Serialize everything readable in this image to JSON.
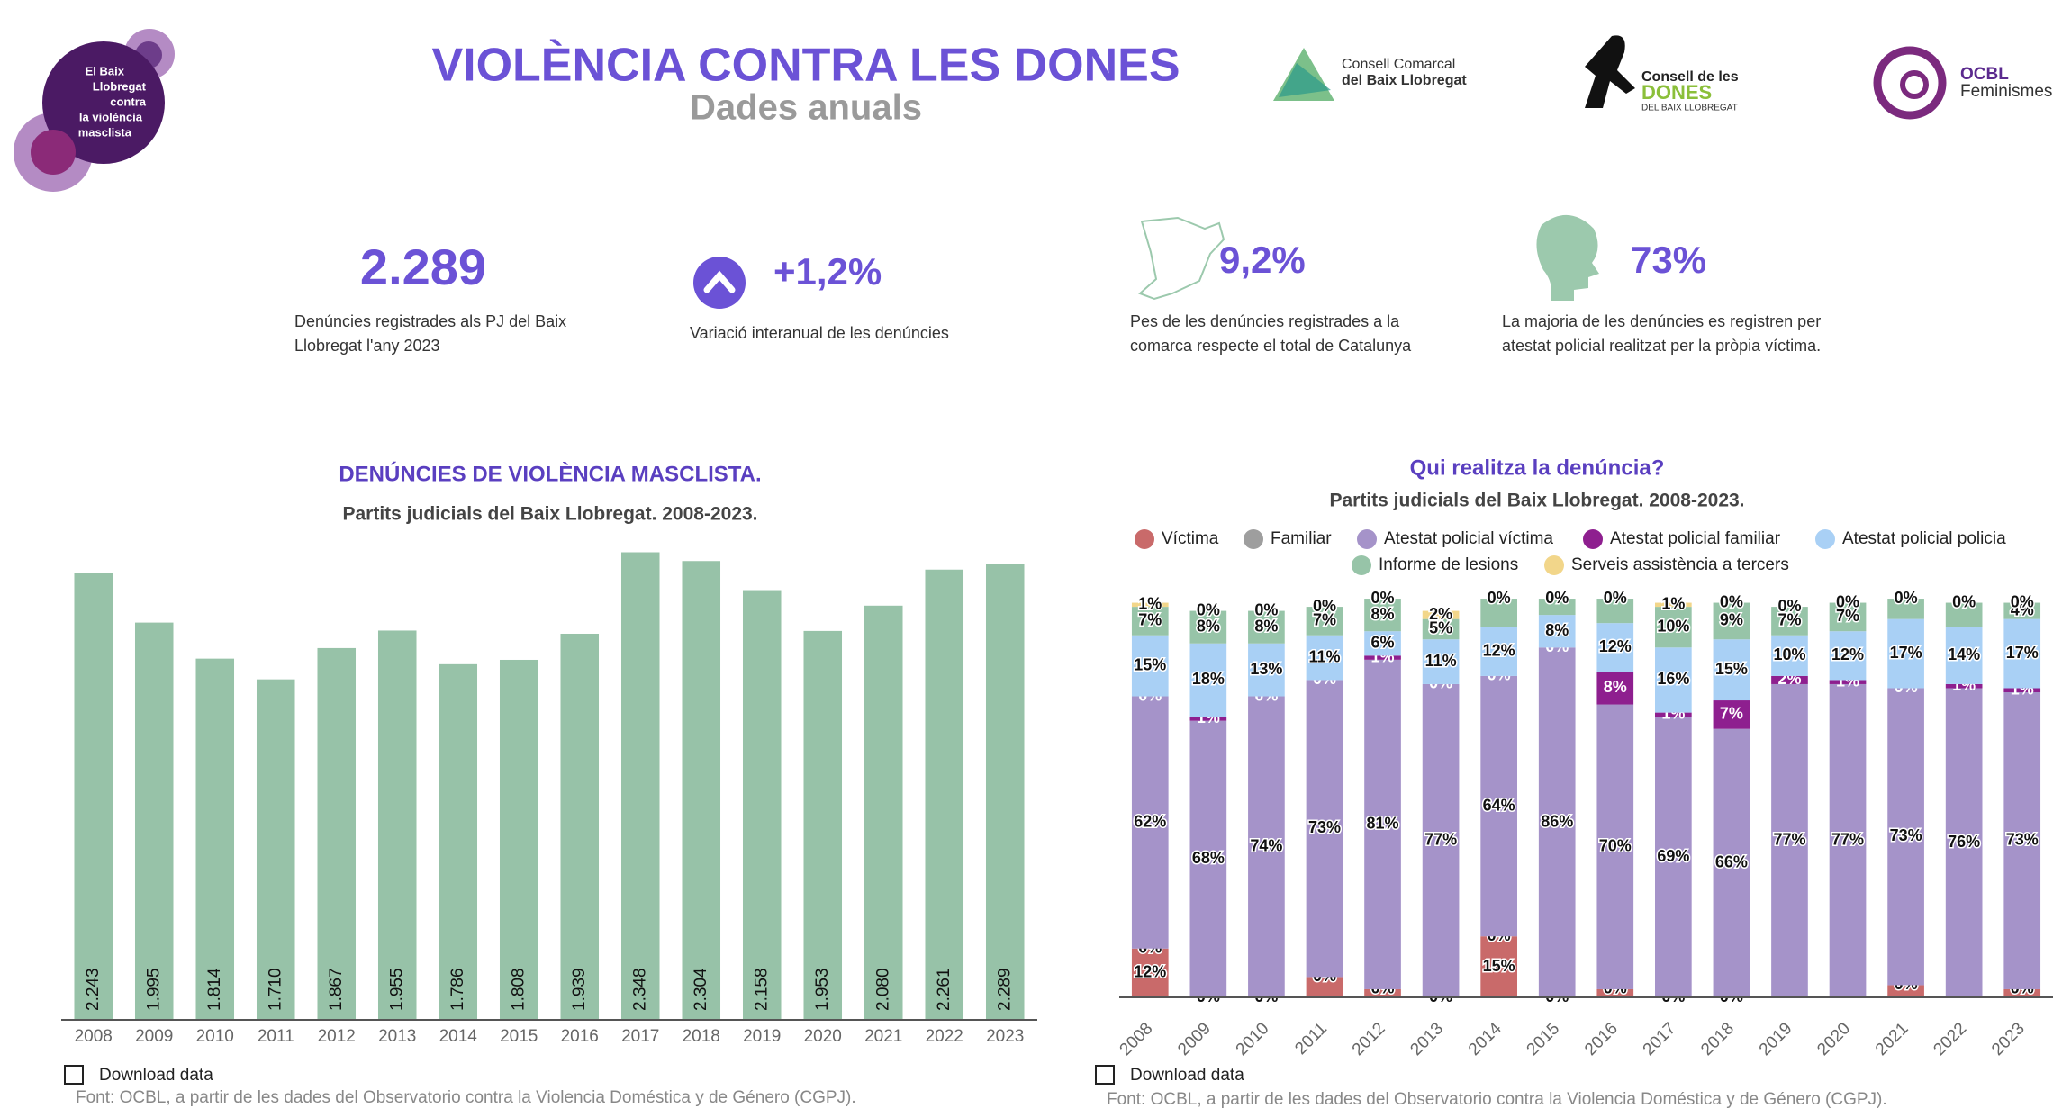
{
  "header": {
    "title": "VIOLÈNCIA CONTRA LES DONES",
    "subtitle": "Dades anuals"
  },
  "logos": {
    "left": [
      "El Baix",
      "Llobregat",
      "contra",
      "la violència",
      "masclista"
    ],
    "consell": [
      "Consell Comarcal",
      "del Baix Llobregat"
    ],
    "dones": [
      "Consell de les",
      "DONES",
      "DEL BAIX LLOBREGAT"
    ],
    "ocbl": [
      "OCBL",
      "Feminismes"
    ]
  },
  "kpis": [
    {
      "value": "2.289",
      "text": [
        "Denúncies registrades als PJ del Baix",
        "Llobregat l'any 2023"
      ]
    },
    {
      "value": "+1,2%",
      "text": [
        "Variació interanual de les denúncies"
      ]
    },
    {
      "value": "9,2%",
      "text": [
        "Pes de les denúncies registrades a la",
        "comarca respecte el total de Catalunya"
      ]
    },
    {
      "value": "73%",
      "text": [
        "La majoria de les denúncies es registren per",
        "atestat policial realitzat per la pròpia víctima."
      ]
    }
  ],
  "chart_data": [
    {
      "type": "bar",
      "title": "DENÚNCIES DE VIOLÈNCIA MASCLISTA.",
      "subtitle": "Partits judicials del Baix Llobregat. 2008-2023.",
      "categories": [
        "2008",
        "2009",
        "2010",
        "2011",
        "2012",
        "2013",
        "2014",
        "2015",
        "2016",
        "2017",
        "2018",
        "2019",
        "2020",
        "2021",
        "2022",
        "2023"
      ],
      "values": [
        2243,
        1995,
        1814,
        1710,
        1867,
        1955,
        1786,
        1808,
        1939,
        2348,
        2304,
        2158,
        1953,
        2080,
        2261,
        2289
      ],
      "value_labels": [
        "2.243",
        "1.995",
        "1.814",
        "1.710",
        "1.867",
        "1.955",
        "1.786",
        "1.808",
        "1.939",
        "2.348",
        "2.304",
        "2.158",
        "1.953",
        "2.080",
        "2.261",
        "2.289"
      ],
      "color": "#97c2a8",
      "ylim": [
        0,
        2400
      ],
      "download": "Download data",
      "source": "Font: OCBL, a partir de les dades del Observatorio contra la Violencia Doméstica y de Género (CGPJ)."
    },
    {
      "type": "bar",
      "stacked": true,
      "title": "Qui realitza la denúncia?",
      "subtitle": "Partits judicials del Baix Llobregat. 2008-2023.",
      "categories": [
        "2008",
        "2009",
        "2010",
        "2011",
        "2012",
        "2013",
        "2014",
        "2015",
        "2016",
        "2017",
        "2018",
        "2019",
        "2020",
        "2021",
        "2022",
        "2023"
      ],
      "ylim": [
        0,
        100
      ],
      "series": [
        {
          "name": "Víctima",
          "color": "#c96a6a",
          "values": [
            12,
            0,
            0,
            5,
            2,
            0,
            15,
            0,
            2,
            0,
            0,
            0,
            0,
            3,
            0,
            2
          ],
          "value_labels": [
            "12%",
            null,
            null,
            null,
            null,
            null,
            "15%",
            "0%",
            null,
            null,
            null,
            null,
            null,
            null,
            null,
            null
          ]
        },
        {
          "name": "Familiar",
          "color": "#9e9e9e",
          "values": [
            0,
            0,
            0,
            0,
            0,
            0,
            0,
            0,
            0,
            0,
            0,
            0,
            0,
            0,
            0,
            0
          ],
          "value_labels": [
            "0%",
            "0%",
            "0%",
            "0%",
            "0%",
            "0%",
            "0%",
            null,
            "0%",
            "0%",
            "0%",
            null,
            null,
            "0%",
            null,
            "0%"
          ]
        },
        {
          "name": "Atestat policial víctima",
          "color": "#a593c9",
          "values": [
            62,
            68,
            74,
            73,
            81,
            77,
            64,
            86,
            70,
            69,
            66,
            77,
            77,
            73,
            76,
            73
          ],
          "value_labels": [
            "62%",
            "68%",
            "74%",
            "73%",
            "81%",
            "77%",
            "64%",
            "86%",
            "70%",
            "69%",
            "66%",
            "77%",
            "77%",
            "73%",
            "76%",
            "73%"
          ]
        },
        {
          "name": "Atestat policial familiar",
          "color": "#8e1f8f",
          "values": [
            0,
            1,
            0,
            0,
            1,
            0,
            0,
            0,
            8,
            1,
            7,
            2,
            1,
            0,
            1,
            1
          ],
          "value_labels": [
            "0%",
            "1%",
            "0%",
            "0%",
            "1%",
            "0%",
            "0%",
            "0%",
            "8%",
            "1%",
            "7%",
            "2%",
            "1%",
            "0%",
            "1%",
            "1%"
          ]
        },
        {
          "name": "Atestat policial policia",
          "color": "#a9d0f5",
          "values": [
            15,
            18,
            13,
            11,
            6,
            11,
            12,
            8,
            12,
            16,
            15,
            10,
            12,
            17,
            14,
            17
          ],
          "value_labels": [
            "15%",
            "18%",
            "13%",
            "11%",
            "6%",
            "11%",
            "12%",
            "8%",
            "12%",
            "16%",
            "15%",
            "10%",
            "12%",
            "17%",
            "14%",
            "17%"
          ]
        },
        {
          "name": "Informe de lesions",
          "color": "#97c4a8",
          "values": [
            7,
            8,
            8,
            7,
            8,
            5,
            7,
            4,
            6,
            10,
            9,
            7,
            7,
            5,
            6,
            4
          ],
          "value_labels": [
            "7%",
            "8%",
            "8%",
            "7%",
            "8%",
            "5%",
            null,
            null,
            null,
            "10%",
            "9%",
            "7%",
            "7%",
            null,
            null,
            "4%"
          ]
        },
        {
          "name": "Serveis assistència a tercers",
          "color": "#f2d68a",
          "values": [
            1,
            0,
            0,
            0,
            0,
            2,
            0,
            0,
            0,
            1,
            0,
            0,
            0,
            0,
            0,
            0
          ],
          "value_labels": [
            "1%",
            "0%",
            "0%",
            "0%",
            "0%",
            "2%",
            "0%",
            "0%",
            "0%",
            "1%",
            "0%",
            "0%",
            "0%",
            "0%",
            "0%",
            "0%"
          ]
        }
      ],
      "download": "Download data",
      "source": "Font: OCBL, a partir de les dades del Observatorio contra la Violencia Doméstica y de Género (CGPJ)."
    }
  ]
}
